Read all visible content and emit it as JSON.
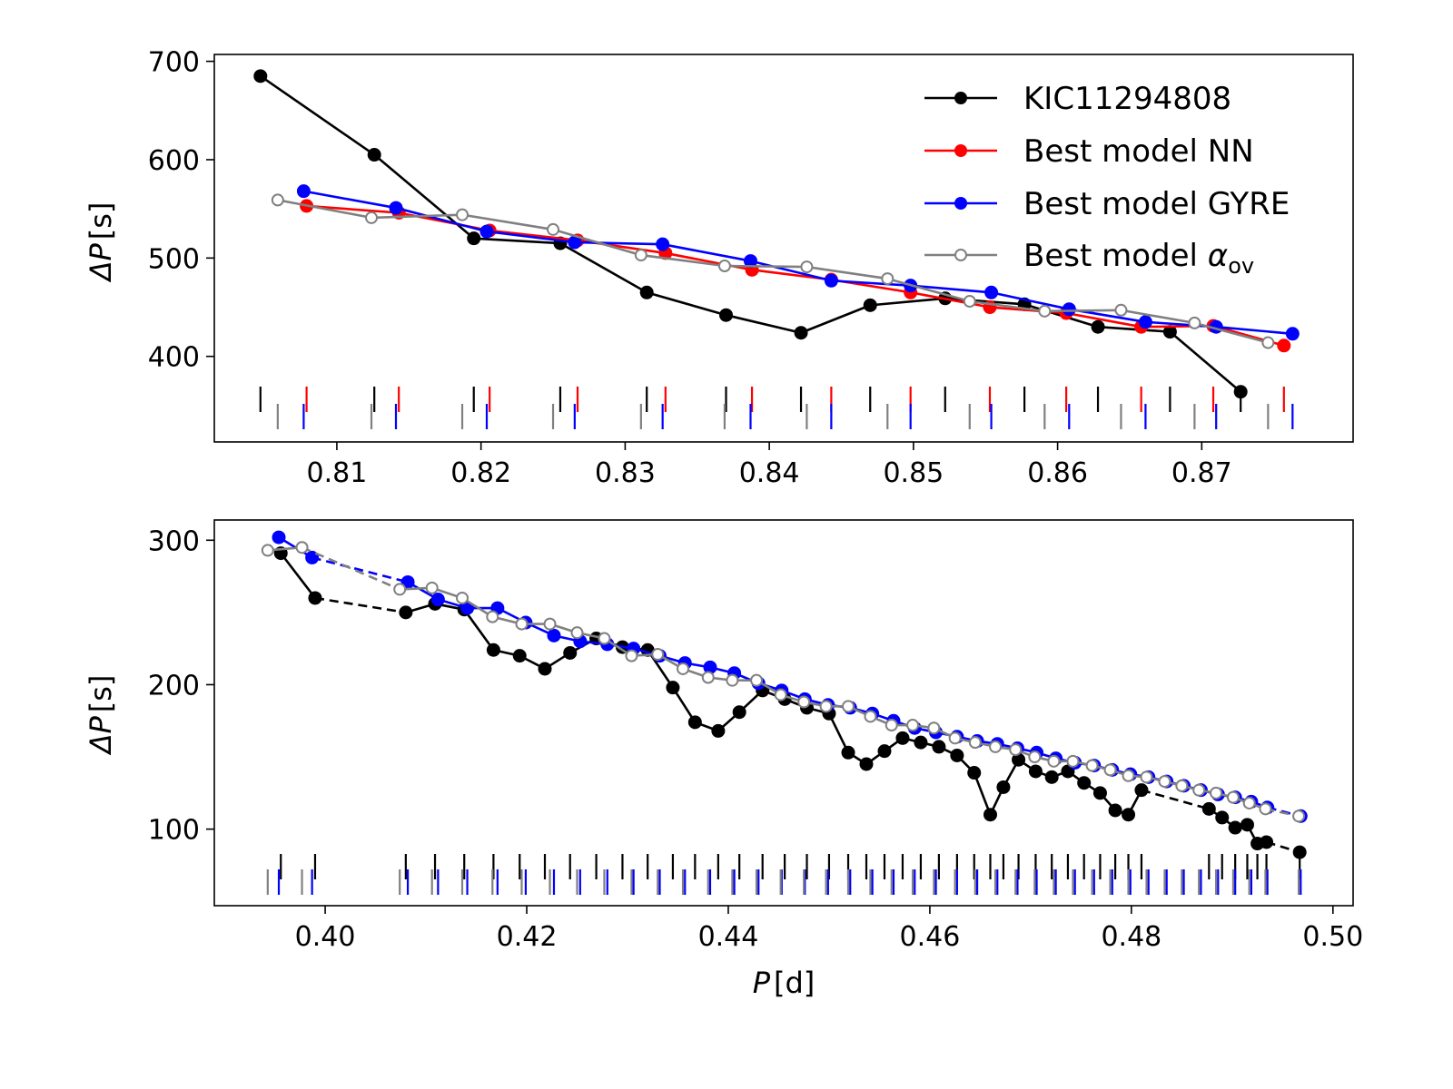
{
  "chart_data": [
    {
      "type": "line",
      "xlim": [
        0.8015,
        0.8805
      ],
      "ylim": [
        313,
        707
      ],
      "xticks": [
        0.81,
        0.82,
        0.83,
        0.84,
        0.85,
        0.86,
        0.87
      ],
      "xtick_labels": [
        "0.81",
        "0.82",
        "0.83",
        "0.84",
        "0.85",
        "0.86",
        "0.87"
      ],
      "yticks": [
        400,
        500,
        600,
        700
      ],
      "ytick_labels": [
        "400",
        "500",
        "600",
        "700"
      ],
      "ylabel_main": "ΔP",
      "ylabel_unit": "[s]",
      "legend": [
        {
          "label": "KIC11294808",
          "color": "#000000",
          "marker": "filled"
        },
        {
          "label": "Best model NN",
          "color": "#ff0000",
          "marker": "filled"
        },
        {
          "label": "Best model GYRE",
          "color": "#0000ff",
          "marker": "filled"
        },
        {
          "label": "Best model ",
          "label_math": "α",
          "label_sub": "ov",
          "color": "#808080",
          "marker": "open"
        }
      ],
      "series": [
        {
          "name": "KIC11294808",
          "color": "#000000",
          "marker": "filled",
          "x": [
            0.8047,
            0.8126,
            0.8195,
            0.8255,
            0.8315,
            0.837,
            0.8422,
            0.847,
            0.8522,
            0.8577,
            0.8628,
            0.8678,
            0.8727
          ],
          "y": [
            685,
            605,
            520,
            515,
            465,
            442,
            424,
            452,
            459,
            453,
            430,
            425,
            364
          ]
        },
        {
          "name": "Best model NN",
          "color": "#ff0000",
          "marker": "filled",
          "x": [
            0.8079,
            0.8143,
            0.8206,
            0.8267,
            0.8328,
            0.8388,
            0.8443,
            0.8498,
            0.8553,
            0.8606,
            0.8658,
            0.8708,
            0.8757
          ],
          "y": [
            553,
            546,
            528,
            518,
            505,
            488,
            478,
            465,
            450,
            444,
            430,
            431,
            411
          ]
        },
        {
          "name": "Best model GYRE",
          "color": "#0000ff",
          "marker": "filled",
          "x": [
            0.8077,
            0.8141,
            0.8204,
            0.8265,
            0.8326,
            0.8387,
            0.8443,
            0.8498,
            0.8554,
            0.8608,
            0.8661,
            0.871,
            0.8763
          ],
          "y": [
            568,
            551,
            527,
            516,
            514,
            497,
            477,
            472,
            465,
            448,
            435,
            430,
            423
          ]
        },
        {
          "name": "Best model alpha_ov",
          "color": "#808080",
          "marker": "open",
          "x": [
            0.8059,
            0.8124,
            0.8187,
            0.825,
            0.8311,
            0.8369,
            0.8426,
            0.8482,
            0.8539,
            0.8591,
            0.8644,
            0.8695,
            0.8746
          ],
          "y": [
            559,
            541,
            544,
            529,
            503,
            492,
            491,
            479,
            456,
            446,
            447,
            434,
            414
          ]
        }
      ]
    },
    {
      "type": "line",
      "xlim": [
        0.389,
        0.502
      ],
      "ylim": [
        47,
        314
      ],
      "xticks": [
        0.4,
        0.42,
        0.44,
        0.46,
        0.48,
        0.5
      ],
      "xtick_labels": [
        "0.40",
        "0.42",
        "0.44",
        "0.46",
        "0.48",
        "0.50"
      ],
      "yticks": [
        100,
        200,
        300
      ],
      "ytick_labels": [
        "100",
        "200",
        "300"
      ],
      "ylabel_main": "ΔP",
      "ylabel_unit": "[s]",
      "xlabel_main": "P",
      "xlabel_unit": "[d]",
      "series": [
        {
          "name": "KIC11294808",
          "color": "#000000",
          "marker": "filled",
          "x": [
            0.3956,
            0.399,
            0.408,
            0.4109,
            0.4138,
            0.4167,
            0.4193,
            0.4218,
            0.4243,
            0.4269,
            0.4295,
            0.432,
            0.4345,
            0.4367,
            0.439,
            0.4411,
            0.4434,
            0.4456,
            0.4478,
            0.45,
            0.4519,
            0.4537,
            0.4555,
            0.4573,
            0.4591,
            0.4609,
            0.4627,
            0.4644,
            0.466,
            0.4673,
            0.4688,
            0.4705,
            0.4721,
            0.4737,
            0.4753,
            0.4769,
            0.4784,
            0.4797,
            0.481,
            0.4877,
            0.489,
            0.4903,
            0.4915,
            0.4925,
            0.4934,
            0.4967
          ],
          "y": [
            291,
            260,
            250,
            256,
            252,
            224,
            220,
            211,
            222,
            232,
            226,
            224,
            198,
            174,
            168,
            181,
            196,
            190,
            184,
            180,
            153,
            145,
            154,
            163,
            160,
            157,
            151,
            139,
            110,
            129,
            148,
            140,
            136,
            140,
            132,
            125,
            113,
            110,
            127,
            114,
            108,
            101,
            103,
            90,
            91,
            84
          ],
          "segment_styles": [
            "solid",
            "dashed",
            "solid",
            "solid",
            "solid",
            "solid",
            "solid",
            "solid",
            "solid",
            "solid",
            "solid",
            "solid",
            "solid",
            "solid",
            "solid",
            "solid",
            "solid",
            "solid",
            "solid",
            "solid",
            "solid",
            "solid",
            "solid",
            "solid",
            "solid",
            "solid",
            "solid",
            "solid",
            "solid",
            "solid",
            "solid",
            "solid",
            "solid",
            "solid",
            "solid",
            "solid",
            "solid",
            "solid",
            "dashed",
            "solid",
            "solid",
            "solid",
            "solid",
            "solid",
            "dashed"
          ]
        },
        {
          "name": "Best model GYRE",
          "color": "#0000ff",
          "marker": "filled",
          "x": [
            0.3954,
            0.3987,
            0.4082,
            0.4112,
            0.4141,
            0.4171,
            0.4199,
            0.4227,
            0.4253,
            0.428,
            0.4306,
            0.4332,
            0.4357,
            0.4382,
            0.4406,
            0.443,
            0.4453,
            0.4476,
            0.4499,
            0.4521,
            0.4543,
            0.4564,
            0.4585,
            0.4606,
            0.4627,
            0.4647,
            0.4667,
            0.4687,
            0.4706,
            0.4725,
            0.4744,
            0.4763,
            0.4781,
            0.4799,
            0.4817,
            0.4835,
            0.4852,
            0.4869,
            0.4886,
            0.4903,
            0.4919,
            0.4935,
            0.4968
          ],
          "y": [
            302,
            288,
            271,
            259,
            253,
            253,
            243,
            234,
            230,
            228,
            225,
            220,
            215,
            212,
            208,
            201,
            196,
            190,
            186,
            184,
            180,
            175,
            170,
            167,
            164,
            161,
            159,
            156,
            153,
            149,
            146,
            144,
            141,
            138,
            136,
            133,
            130,
            127,
            124,
            122,
            119,
            115,
            109
          ],
          "segment_styles": [
            "solid",
            "dashed",
            "solid",
            "solid",
            "solid",
            "solid",
            "solid",
            "solid",
            "solid",
            "solid",
            "solid",
            "solid",
            "solid",
            "solid",
            "solid",
            "solid",
            "solid",
            "solid",
            "solid",
            "solid",
            "solid",
            "solid",
            "solid",
            "solid",
            "solid",
            "solid",
            "solid",
            "solid",
            "solid",
            "solid",
            "solid",
            "solid",
            "solid",
            "solid",
            "solid",
            "solid",
            "solid",
            "solid",
            "solid",
            "solid",
            "solid",
            "dashed"
          ]
        },
        {
          "name": "Best model alpha_ov",
          "color": "#808080",
          "marker": "open",
          "x": [
            0.3943,
            0.3977,
            0.4074,
            0.4106,
            0.4136,
            0.4166,
            0.4195,
            0.4223,
            0.425,
            0.4277,
            0.4304,
            0.433,
            0.4355,
            0.438,
            0.4404,
            0.4428,
            0.4452,
            0.4475,
            0.4497,
            0.4519,
            0.4541,
            0.4562,
            0.4583,
            0.4604,
            0.4625,
            0.4645,
            0.4665,
            0.4685,
            0.4704,
            0.4723,
            0.4742,
            0.4761,
            0.4779,
            0.4797,
            0.4815,
            0.4833,
            0.485,
            0.4867,
            0.4884,
            0.4901,
            0.4917,
            0.4933,
            0.4966
          ],
          "y": [
            293,
            295,
            266,
            267,
            260,
            247,
            242,
            242,
            236,
            232,
            220,
            221,
            211,
            205,
            203,
            203,
            193,
            188,
            185,
            185,
            178,
            172,
            172,
            170,
            163,
            160,
            157,
            155,
            150,
            147,
            147,
            144,
            141,
            137,
            136,
            133,
            130,
            127,
            125,
            122,
            118,
            114,
            109
          ],
          "segment_styles": [
            "solid",
            "dashed",
            "solid",
            "solid",
            "solid",
            "solid",
            "solid",
            "solid",
            "solid",
            "solid",
            "solid",
            "solid",
            "solid",
            "solid",
            "solid",
            "solid",
            "solid",
            "solid",
            "solid",
            "solid",
            "solid",
            "solid",
            "solid",
            "solid",
            "solid",
            "solid",
            "solid",
            "solid",
            "solid",
            "solid",
            "solid",
            "solid",
            "solid",
            "solid",
            "solid",
            "solid",
            "solid",
            "solid",
            "solid",
            "solid",
            "solid",
            "dashed"
          ]
        }
      ]
    }
  ]
}
